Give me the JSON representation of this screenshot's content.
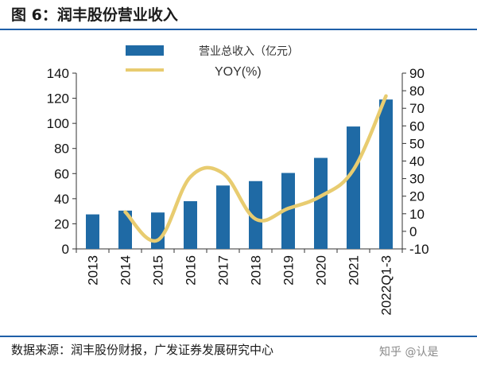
{
  "header": {
    "title": "图 6：润丰股份营业收入"
  },
  "footer": {
    "source": "数据来源：润丰股份财报，广发证券发展研究中心",
    "watermark": "知乎 @认是"
  },
  "colors": {
    "bar": "#1f6aa5",
    "line": "#e8cc70",
    "rule": "#1f5fa8"
  },
  "chart_data": {
    "type": "bar",
    "categories": [
      "2013",
      "2014",
      "2015",
      "2016",
      "2017",
      "2018",
      "2019",
      "2020",
      "2021",
      "2022Q1-3"
    ],
    "series": [
      {
        "name": "营业总收入（亿元）",
        "type": "bar",
        "axis": "left",
        "values": [
          27.5,
          30.5,
          29,
          38,
          50.5,
          54,
          60.5,
          72.5,
          97.5,
          119
        ]
      },
      {
        "name": "YOY(%)",
        "type": "line",
        "axis": "right",
        "values": [
          null,
          11,
          -5,
          31,
          33,
          7,
          13,
          20,
          35,
          77
        ]
      }
    ],
    "y_left": {
      "min": 0,
      "max": 140,
      "ticks": [
        0,
        20,
        40,
        60,
        80,
        100,
        120,
        140
      ]
    },
    "y_right": {
      "min": -10,
      "max": 90,
      "ticks": [
        -10,
        0,
        10,
        20,
        30,
        40,
        50,
        60,
        70,
        80,
        90
      ]
    },
    "legend": {
      "position": "top"
    }
  }
}
